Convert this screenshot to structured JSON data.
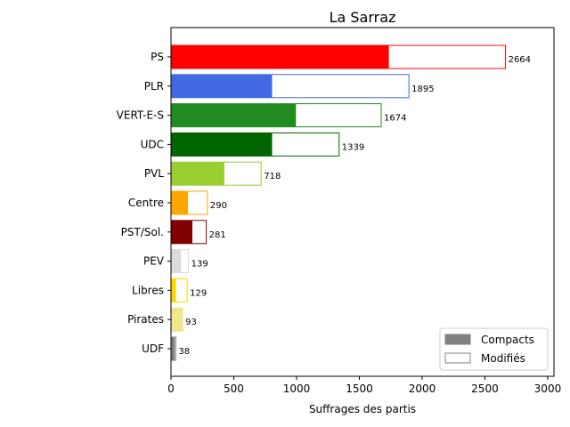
{
  "chart_data": {
    "type": "bar",
    "orientation": "horizontal",
    "stacked": true,
    "title": "La Sarraz",
    "xlabel": "Suffrages des partis",
    "ylabel": "",
    "xlim": [
      0,
      3050
    ],
    "xticks": [
      0,
      500,
      1000,
      1500,
      2000,
      2500,
      3000
    ],
    "grid": false,
    "legend_position": "lower-right",
    "categories": [
      "PS",
      "PLR",
      "VERT-E-S",
      "UDC",
      "PVL",
      "Centre",
      "PST/Sol.",
      "PEV",
      "Libres",
      "Pirates",
      "UDF"
    ],
    "colors": [
      "#ff0000",
      "#4169e1",
      "#228b22",
      "#006400",
      "#9acd32",
      "#ffa500",
      "#800000",
      "#dcdcdc",
      "#ffd700",
      "#f0e68c",
      "#808080"
    ],
    "series": [
      {
        "name": "Compacts",
        "values": [
          1735,
          805,
          995,
          805,
          425,
          135,
          170,
          80,
          40,
          93,
          30
        ]
      },
      {
        "name": "Modifiés",
        "values": [
          929,
          1090,
          679,
          534,
          293,
          155,
          111,
          59,
          89,
          0,
          8
        ]
      }
    ],
    "totals": [
      2664,
      1895,
      1674,
      1339,
      718,
      290,
      281,
      139,
      129,
      93,
      38
    ],
    "legend": [
      {
        "label": "Compacts",
        "style": "filled",
        "color": "#808080"
      },
      {
        "label": "Modifiés",
        "style": "outline",
        "color": "#808080"
      }
    ]
  }
}
